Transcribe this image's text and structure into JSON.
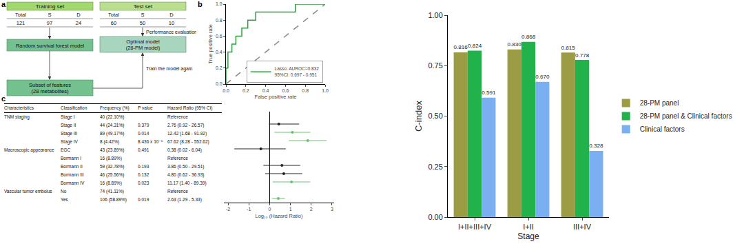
{
  "panel_labels": [
    "a",
    "b",
    "c"
  ],
  "diagram": {
    "sets": [
      {
        "title": "Training set",
        "columns": [
          "Total",
          "S",
          "D"
        ],
        "values": [
          121,
          97,
          24
        ]
      },
      {
        "title": "Test set",
        "columns": [
          "Total",
          "S",
          "D"
        ],
        "values": [
          60,
          50,
          10
        ]
      }
    ],
    "nodes": {
      "model": [
        "Random survival forest model"
      ],
      "optimal": [
        "Optimal model",
        "(28-PM model)"
      ],
      "subset": [
        "Subset of features",
        "(28 metabolites)"
      ]
    },
    "edges": {
      "evaluate": "Performance evaluation",
      "retrain": "Train the model again"
    }
  },
  "table": {
    "header": [
      "Characteristics",
      "Classification",
      "Frequency (%)",
      "P value",
      "Hazard Ratio (95% CI)"
    ],
    "rows": [
      [
        "TNM staging",
        "Stage I",
        "40 (22.10%)",
        null,
        "Reference"
      ],
      [
        null,
        "Stage II",
        "44 (24.31%)",
        "0.379",
        "2.76 (0.92 - 26.57)"
      ],
      [
        null,
        "Stage III",
        "89 (49.17%)",
        "0.014",
        "12.42 (1.68 - 91.92)"
      ],
      [
        null,
        "Stage IV",
        "8 (4.42%)",
        "8.436 x 10⁻⁶",
        "67.62 (8.28 - 552.62)"
      ],
      [
        "Macroscopic appearance",
        "EGC",
        "43 (23.89%)",
        "0.491",
        "0.38 (0.02 - 6.04)"
      ],
      [
        null,
        "Bormann I",
        "16 (8.89%)",
        null,
        "Reference"
      ],
      [
        null,
        "Bormann II",
        "59 (32.78%)",
        "0.193",
        "3.86 (0.50 - 29.51)"
      ],
      [
        null,
        "Bormann III",
        "46 (25.56%)",
        "0.132",
        "4.80 (0.62 - 36.93)"
      ],
      [
        null,
        "Bormann IV",
        "16 (8.89%)",
        "0.023",
        "11.17 (1.40 - 89.39)"
      ],
      [
        "Vascular tumor embolus",
        "No",
        "74 (41.11%)",
        null,
        "Reference"
      ],
      [
        null,
        "Yes",
        "106 (58.89%)",
        "0.019",
        "2.63 (1.29 - 5.33)"
      ]
    ]
  },
  "chart_data": [
    {
      "type": "line",
      "x_label": "False positive rate",
      "y_label": "True positive rate",
      "xlim": [
        0,
        1
      ],
      "ylim": [
        0,
        1
      ],
      "xticks": [
        {
          "value": 0,
          "label": "0.0"
        },
        {
          "value": 0.2,
          "label": "0.2"
        },
        {
          "value": 0.4,
          "label": "0.4"
        },
        {
          "value": 0.6,
          "label": "0.6"
        },
        {
          "value": 0.8,
          "label": "0.8"
        },
        {
          "value": 1,
          "label": "1.0"
        }
      ],
      "yticks": [
        {
          "value": 0,
          "label": "0.0"
        },
        {
          "value": 0.2,
          "label": "0.2"
        },
        {
          "value": 0.4,
          "label": "0.4"
        },
        {
          "value": 0.6,
          "label": "0.6"
        },
        {
          "value": 0.8,
          "label": "0.8"
        },
        {
          "value": 1,
          "label": "1.0"
        }
      ],
      "grid": false,
      "legend": "lower right",
      "series": [
        {
          "name": "Lasso: AUROC=0.832\n95%CI: 0.697 - 0.951",
          "color": "#2e9e3e",
          "line_style": "solid",
          "x": [
            0,
            0,
            0.02,
            0.02,
            0.06,
            0.06,
            0.1,
            0.1,
            0.16,
            0.16,
            0.22,
            0.22,
            0.3,
            0.3,
            0.7,
            0.7,
            1
          ],
          "values": [
            0,
            0.2,
            0.2,
            0.4,
            0.4,
            0.5,
            0.5,
            0.6,
            0.6,
            0.7,
            0.7,
            0.8,
            0.8,
            0.9,
            0.9,
            1,
            1
          ]
        },
        {
          "color": "#888888",
          "line_style": "dashed",
          "x": [
            0,
            1
          ],
          "values": [
            0,
            1
          ]
        }
      ]
    },
    {
      "type": "forest",
      "x_label": "Log₁₀ (Hazard Ratio)",
      "categories": [
        "Stage I",
        "Stage II",
        "Stage III",
        "Stage IV",
        "EGC",
        "Bormann I",
        "Bormann II",
        "Bormann III",
        "Bormann IV",
        "No",
        "Yes"
      ],
      "values": [
        null,
        0.44,
        1.09,
        1.83,
        -0.42,
        null,
        0.59,
        0.68,
        1.05,
        null,
        0.42
      ],
      "lower": [
        null,
        -0.04,
        0.23,
        0.92,
        -1.7,
        null,
        -0.3,
        -0.21,
        0.15,
        null,
        0.11
      ],
      "upper": [
        null,
        1.42,
        1.96,
        2.74,
        0.78,
        null,
        1.47,
        1.57,
        1.95,
        null,
        0.73
      ],
      "colors": [
        null,
        "#222222",
        "#6cc070",
        "#6cc070",
        "#222222",
        null,
        "#222222",
        "#222222",
        "#6cc070",
        null,
        "#6cc070"
      ],
      "xlim": [
        -2.2,
        3.1
      ],
      "xticks": [
        -2,
        -1,
        0,
        1,
        2,
        3
      ],
      "tick_labels": "x",
      "grid": false
    },
    {
      "type": "bar",
      "x_label": "Stage",
      "y_label": "C-index",
      "categories": [
        "I+II+III+IV",
        "I+II",
        "III+IV"
      ],
      "ylim": [
        0,
        1
      ],
      "yticks": [
        {
          "value": 0,
          "label": "0.00"
        },
        {
          "value": 0.25,
          "label": "0.25"
        },
        {
          "value": 0.5,
          "label": "0.50"
        },
        {
          "value": 0.75,
          "label": "0.75"
        },
        {
          "value": 1,
          "label": "1.00"
        }
      ],
      "grid": false,
      "legend": "right",
      "data_labels": true,
      "series": [
        {
          "name": "28-PM panel",
          "color": "#9c9c45",
          "values": [
            0.816,
            0.83,
            0.815
          ],
          "value_labels": [
            "0.816",
            "0.830",
            "0.815"
          ]
        },
        {
          "name": "28-PM panel & Clinical factors",
          "color": "#22b24c",
          "values": [
            0.824,
            0.868,
            0.778
          ],
          "value_labels": [
            "0.824",
            "0.868",
            "0.778"
          ]
        },
        {
          "name": "Clinical factors",
          "color": "#7aaff2",
          "values": [
            0.591,
            0.67,
            0.328
          ],
          "value_labels": [
            "0.591",
            "0.670",
            "0.328"
          ]
        }
      ]
    }
  ]
}
